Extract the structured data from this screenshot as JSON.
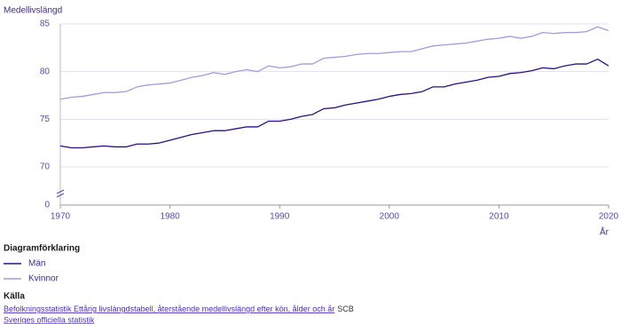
{
  "chart_data": {
    "type": "line",
    "y_label": "Medellivslängd",
    "x_label": "År",
    "x": [
      1970,
      1971,
      1972,
      1973,
      1974,
      1975,
      1976,
      1977,
      1978,
      1979,
      1980,
      1981,
      1982,
      1983,
      1984,
      1985,
      1986,
      1987,
      1988,
      1989,
      1990,
      1991,
      1992,
      1993,
      1994,
      1995,
      1996,
      1997,
      1998,
      1999,
      2000,
      2001,
      2002,
      2003,
      2004,
      2005,
      2006,
      2007,
      2008,
      2009,
      2010,
      2011,
      2012,
      2013,
      2014,
      2015,
      2016,
      2017,
      2018,
      2019,
      2020
    ],
    "xlim": [
      1970,
      2020
    ],
    "xticks": [
      1970,
      1980,
      1990,
      2000,
      2010,
      2020
    ],
    "ylim": [
      0,
      85
    ],
    "yticks": [
      0,
      70,
      75,
      80,
      85
    ],
    "axis_break": true,
    "grid": true,
    "legend_title": "Diagramförklaring",
    "series": [
      {
        "name": "Män",
        "color": "#2a0d8f",
        "values": [
          72.2,
          72.0,
          72.0,
          72.1,
          72.2,
          72.1,
          72.1,
          72.4,
          72.4,
          72.5,
          72.8,
          73.1,
          73.4,
          73.6,
          73.8,
          73.8,
          74.0,
          74.2,
          74.2,
          74.8,
          74.8,
          75.0,
          75.3,
          75.5,
          76.1,
          76.2,
          76.5,
          76.7,
          76.9,
          77.1,
          77.4,
          77.6,
          77.7,
          77.9,
          78.4,
          78.4,
          78.7,
          78.9,
          79.1,
          79.4,
          79.5,
          79.8,
          79.9,
          80.1,
          80.4,
          80.3,
          80.6,
          80.8,
          80.8,
          81.3,
          80.6
        ]
      },
      {
        "name": "Kvinnor",
        "color": "#a699e4",
        "values": [
          77.1,
          77.3,
          77.4,
          77.6,
          77.8,
          77.8,
          77.9,
          78.4,
          78.6,
          78.7,
          78.8,
          79.1,
          79.4,
          79.6,
          79.9,
          79.7,
          80.0,
          80.2,
          80.0,
          80.6,
          80.4,
          80.5,
          80.8,
          80.8,
          81.4,
          81.5,
          81.6,
          81.8,
          81.9,
          81.9,
          82.0,
          82.1,
          82.1,
          82.4,
          82.7,
          82.8,
          82.9,
          83.0,
          83.2,
          83.4,
          83.5,
          83.7,
          83.5,
          83.7,
          84.1,
          84.0,
          84.1,
          84.1,
          84.2,
          84.7,
          84.3
        ]
      }
    ]
  },
  "source": {
    "heading": "Källa",
    "link": "Befolkningsstatistik Ettårig livslängdstabell, återstående medellivslängd efter kön, ålder och år",
    "publisher": "SCB",
    "official": "Sveriges officiella statistik"
  }
}
